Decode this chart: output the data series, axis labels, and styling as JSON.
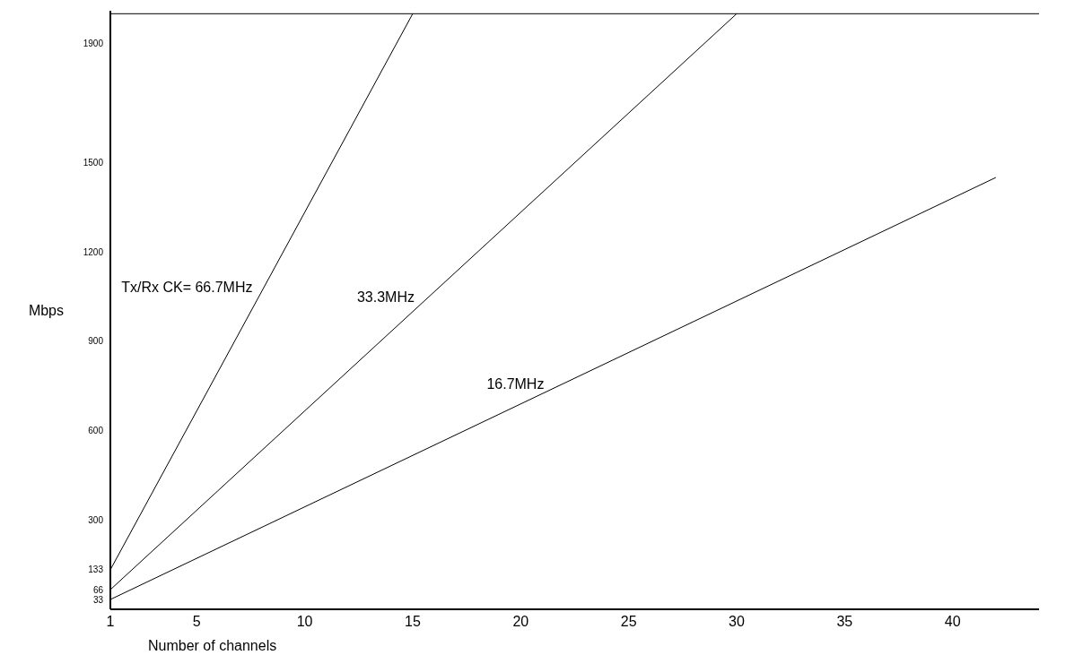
{
  "chart_data": {
    "type": "line",
    "xlabel": "Number of channels",
    "ylabel": "Mbps",
    "xlim": [
      1,
      44
    ],
    "xticks": [
      1,
      5,
      10,
      15,
      20,
      25,
      30,
      35,
      40
    ],
    "ylim": [
      0,
      2010
    ],
    "yticks": [
      33,
      66,
      133,
      300,
      600,
      900,
      1200,
      1500,
      1900
    ],
    "grid": false,
    "legend": false,
    "marker": "none",
    "line_style": "solid",
    "ref_lines": [
      {
        "axis": "y",
        "value": 2000,
        "color": "#000000"
      }
    ],
    "series": [
      {
        "name": "Tx/Rx CK= 66.7MHz",
        "color": "#000000",
        "x": [
          1,
          15
        ],
        "values": [
          133,
          2000
        ]
      },
      {
        "name": "33.3MHz",
        "color": "#000000",
        "x": [
          1,
          30
        ],
        "values": [
          66,
          2000
        ]
      },
      {
        "name": "16.7MHz",
        "color": "#000000",
        "x": [
          1,
          42
        ],
        "values": [
          33,
          1450
        ]
      }
    ]
  }
}
